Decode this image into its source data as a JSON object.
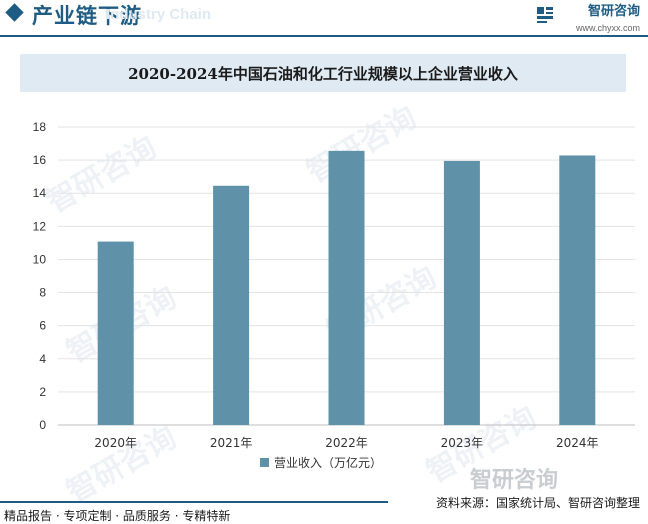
{
  "header": {
    "section_title": "产业链下游",
    "section_title_ghost": "Industry Chain",
    "brand_name": "智研咨询",
    "brand_url": "www.chyxx.com"
  },
  "chart_data": {
    "type": "bar",
    "title": "2020-2024年中国石油和化工行业规模以上企业营业收入",
    "categories": [
      "2020年",
      "2021年",
      "2022年",
      "2023年",
      "2024年"
    ],
    "series": [
      {
        "name": "营业收入（万亿元）",
        "values": [
          11.08,
          14.45,
          16.56,
          15.95,
          16.28
        ]
      }
    ],
    "xlabel": "",
    "ylabel": "",
    "ylim": [
      0,
      18
    ],
    "yticks": [
      0,
      2,
      4,
      6,
      8,
      10,
      12,
      14,
      16,
      18
    ],
    "grid": true,
    "legend": "bottom-center",
    "bar_color": "#5f91a8"
  },
  "footer": {
    "left": "精品报告 · 专项定制 · 品质服务 · 专精特新",
    "source": "资料来源：国家统计局、智研咨询整理",
    "logo_text": "智研咨询"
  },
  "watermark": "智研咨询"
}
